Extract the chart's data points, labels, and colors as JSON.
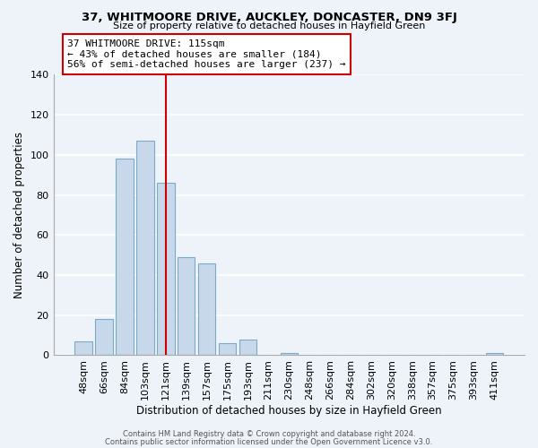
{
  "title": "37, WHITMOORE DRIVE, AUCKLEY, DONCASTER, DN9 3FJ",
  "subtitle": "Size of property relative to detached houses in Hayfield Green",
  "xlabel": "Distribution of detached houses by size in Hayfield Green",
  "ylabel": "Number of detached properties",
  "bar_labels": [
    "48sqm",
    "66sqm",
    "84sqm",
    "103sqm",
    "121sqm",
    "139sqm",
    "157sqm",
    "175sqm",
    "193sqm",
    "211sqm",
    "230sqm",
    "248sqm",
    "266sqm",
    "284sqm",
    "302sqm",
    "320sqm",
    "338sqm",
    "357sqm",
    "375sqm",
    "393sqm",
    "411sqm"
  ],
  "bar_values": [
    7,
    18,
    98,
    107,
    86,
    49,
    46,
    6,
    8,
    0,
    1,
    0,
    0,
    0,
    0,
    0,
    0,
    0,
    0,
    0,
    1
  ],
  "bar_color": "#c8d8eb",
  "bar_edge_color": "#7aaac8",
  "vline_x_idx": 4,
  "vline_color": "#cc0000",
  "annotation_text": "37 WHITMOORE DRIVE: 115sqm\n← 43% of detached houses are smaller (184)\n56% of semi-detached houses are larger (237) →",
  "annotation_box_color": "#ffffff",
  "annotation_box_edge": "#cc0000",
  "ylim": [
    0,
    140
  ],
  "yticks": [
    0,
    20,
    40,
    60,
    80,
    100,
    120,
    140
  ],
  "footer1": "Contains HM Land Registry data © Crown copyright and database right 2024.",
  "footer2": "Contains public sector information licensed under the Open Government Licence v3.0.",
  "background_color": "#eef3f9",
  "grid_color": "#ffffff"
}
